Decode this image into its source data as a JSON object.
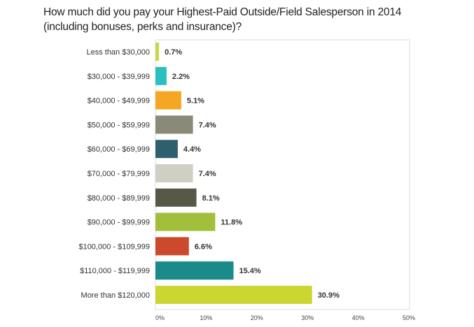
{
  "chart_data": {
    "type": "bar",
    "orientation": "horizontal",
    "title_lines": [
      "How much did you pay your Highest-Paid Outside/Field Salesperson in 2014",
      "(including bonuses, perks and insurance)?"
    ],
    "categories": [
      "Less than $30,000",
      "$30,000 - $39,999",
      "$40,000 - $49,999",
      "$50,000 - $59,999",
      "$60,000 - $69,999",
      "$70,000 - $79,999",
      "$80,000 - $89,999",
      "$90,000 - $99,999",
      "$100,000 - $109,999",
      "$110,000 - $119,999",
      "More than $120,000"
    ],
    "values": [
      0.7,
      2.2,
      5.1,
      7.4,
      4.4,
      7.4,
      8.1,
      11.8,
      6.6,
      15.4,
      30.9
    ],
    "value_labels": [
      "0.7%",
      "2.2%",
      "5.1%",
      "7.4%",
      "4.4%",
      "7.4%",
      "8.1%",
      "11.8%",
      "6.6%",
      "15.4%",
      "30.9%"
    ],
    "colors": [
      "#c9d64a",
      "#2bbfbf",
      "#f5a623",
      "#8a8a78",
      "#2f5f6e",
      "#d0cfc4",
      "#585848",
      "#a2bf3b",
      "#cc4a2c",
      "#1a8a8a",
      "#ccd630"
    ],
    "xlim": [
      0,
      50
    ],
    "xticks": [
      0,
      10,
      20,
      30,
      40,
      50
    ],
    "xtick_labels": [
      "0%",
      "10%",
      "20%",
      "30%",
      "40%",
      "50%"
    ],
    "grid": false,
    "legend": "none"
  }
}
